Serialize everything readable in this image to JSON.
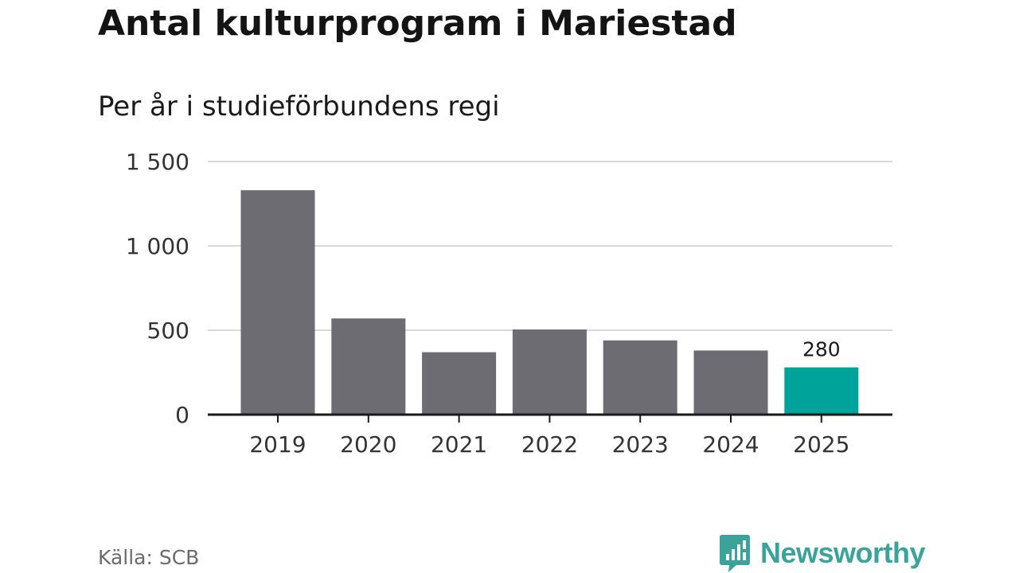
{
  "title": "Antal kulturprogram i Mariestad",
  "subtitle": "Per år i studieförbundens regi",
  "source": "Källa: SCB",
  "brand": {
    "name": "Newsworthy",
    "icon": "newsworthy-logo-icon",
    "color": "#3ba39a"
  },
  "colors": {
    "bar": "#6d6c72",
    "highlight": "#00a399",
    "grid": "#d9d9d9",
    "axis": "#1a1a1a"
  },
  "chart_data": {
    "type": "bar",
    "title": "Antal kulturprogram i Mariestad",
    "subtitle": "Per år i studieförbundens regi",
    "xlabel": "",
    "ylabel": "",
    "categories": [
      "2019",
      "2020",
      "2021",
      "2022",
      "2023",
      "2024",
      "2025"
    ],
    "values": [
      1330,
      570,
      370,
      505,
      440,
      380,
      280
    ],
    "highlight_index": 6,
    "data_labels": [
      {
        "index": 6,
        "text": "280"
      }
    ],
    "ylim": [
      0,
      1500
    ],
    "yticks": [
      0,
      500,
      1000,
      1500
    ],
    "ytick_labels": [
      "0",
      "500",
      "1 000",
      "1 500"
    ],
    "grid": true,
    "legend": "none"
  }
}
